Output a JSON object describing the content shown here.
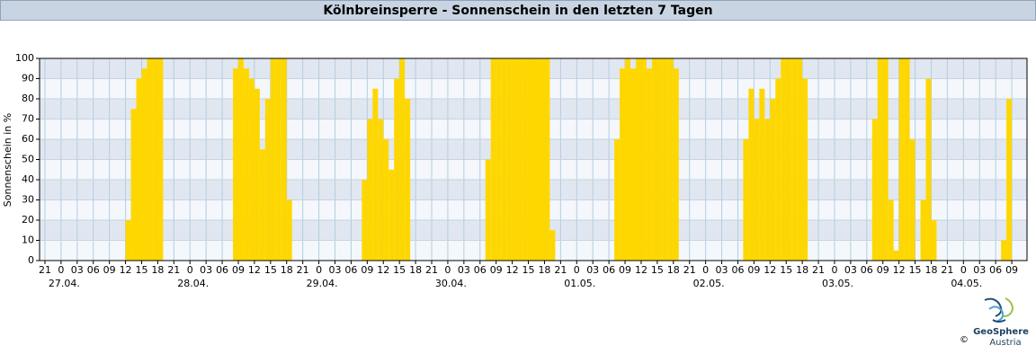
{
  "chart_data": {
    "type": "bar",
    "title": "Kölnbreinsperre - Sonnenschein in den letzten 7 Tagen",
    "y_label": "Sonnenschein in %",
    "color": "#ffd700",
    "grid": true,
    "x": [
      "27.04. 12:00",
      "27.04. 13:00",
      "27.04. 14:00",
      "27.04. 15:00",
      "27.04. 16:00",
      "27.04. 17:00",
      "27.04. 18:00",
      "28.04. 08:00",
      "28.04. 09:00",
      "28.04. 10:00",
      "28.04. 11:00",
      "28.04. 12:00",
      "28.04. 13:00",
      "28.04. 14:00",
      "28.04. 15:00",
      "28.04. 16:00",
      "28.04. 17:00",
      "28.04. 18:00",
      "29.04. 08:00",
      "29.04. 09:00",
      "29.04. 10:00",
      "29.04. 11:00",
      "29.04. 12:00",
      "29.04. 13:00",
      "29.04. 14:00",
      "29.04. 15:00",
      "29.04. 16:00",
      "30.04. 07:00",
      "30.04. 08:00",
      "30.04. 09:00",
      "30.04. 10:00",
      "30.04. 11:00",
      "30.04. 12:00",
      "30.04. 13:00",
      "30.04. 14:00",
      "30.04. 15:00",
      "30.04. 16:00",
      "30.04. 17:00",
      "30.04. 18:00",
      "30.04. 19:00",
      "01.05. 07:00",
      "01.05. 08:00",
      "01.05. 09:00",
      "01.05. 10:00",
      "01.05. 11:00",
      "01.05. 12:00",
      "01.05. 13:00",
      "01.05. 14:00",
      "01.05. 15:00",
      "01.05. 16:00",
      "01.05. 17:00",
      "01.05. 18:00",
      "02.05. 07:00",
      "02.05. 08:00",
      "02.05. 09:00",
      "02.05. 10:00",
      "02.05. 11:00",
      "02.05. 12:00",
      "02.05. 13:00",
      "02.05. 14:00",
      "02.05. 15:00",
      "02.05. 16:00",
      "02.05. 17:00",
      "02.05. 18:00",
      "03.05. 07:00",
      "03.05. 08:00",
      "03.05. 09:00",
      "03.05. 10:00",
      "03.05. 11:00",
      "03.05. 12:00",
      "03.05. 13:00",
      "03.05. 14:00",
      "03.05. 16:00",
      "03.05. 17:00",
      "03.05. 18:00",
      "04.05. 07:00",
      "04.05. 08:00"
    ],
    "values": [
      20,
      75,
      90,
      95,
      100,
      100,
      100,
      95,
      100,
      95,
      90,
      85,
      55,
      80,
      100,
      100,
      100,
      30,
      40,
      70,
      85,
      70,
      60,
      45,
      90,
      100,
      80,
      50,
      100,
      100,
      100,
      100,
      100,
      100,
      100,
      100,
      100,
      100,
      100,
      15,
      60,
      95,
      100,
      95,
      100,
      100,
      95,
      100,
      100,
      100,
      100,
      95,
      60,
      85,
      70,
      85,
      70,
      80,
      90,
      100,
      100,
      100,
      100,
      90,
      70,
      100,
      100,
      30,
      5,
      100,
      100,
      60,
      30,
      90,
      20,
      10,
      80
    ],
    "xlim": [
      "26.04. 20:00",
      "04.05. 11:50"
    ],
    "xticks": [
      {
        "value": "26.04. 21:00",
        "label": "21"
      },
      {
        "value": "27.04. 00:00",
        "label": "0"
      },
      {
        "value": "27.04. 03:00",
        "label": "03"
      },
      {
        "value": "27.04. 06:00",
        "label": "06"
      },
      {
        "value": "27.04. 09:00",
        "label": "09"
      },
      {
        "value": "27.04. 12:00",
        "label": "12"
      },
      {
        "value": "27.04. 15:00",
        "label": "15"
      },
      {
        "value": "27.04. 18:00",
        "label": "18"
      },
      {
        "value": "27.04. 21:00",
        "label": "21"
      },
      {
        "value": "28.04. 00:00",
        "label": "0"
      },
      {
        "value": "28.04. 03:00",
        "label": "03"
      },
      {
        "value": "28.04. 06:00",
        "label": "06"
      },
      {
        "value": "28.04. 09:00",
        "label": "09"
      },
      {
        "value": "28.04. 12:00",
        "label": "12"
      },
      {
        "value": "28.04. 15:00",
        "label": "15"
      },
      {
        "value": "28.04. 18:00",
        "label": "18"
      },
      {
        "value": "28.04. 21:00",
        "label": "21"
      },
      {
        "value": "29.04. 00:00",
        "label": "0"
      },
      {
        "value": "29.04. 03:00",
        "label": "03"
      },
      {
        "value": "29.04. 06:00",
        "label": "06"
      },
      {
        "value": "29.04. 09:00",
        "label": "09"
      },
      {
        "value": "29.04. 12:00",
        "label": "12"
      },
      {
        "value": "29.04. 15:00",
        "label": "15"
      },
      {
        "value": "29.04. 18:00",
        "label": "18"
      },
      {
        "value": "29.04. 21:00",
        "label": "21"
      },
      {
        "value": "30.04. 00:00",
        "label": "0"
      },
      {
        "value": "30.04. 03:00",
        "label": "03"
      },
      {
        "value": "30.04. 06:00",
        "label": "06"
      },
      {
        "value": "30.04. 09:00",
        "label": "09"
      },
      {
        "value": "30.04. 12:00",
        "label": "12"
      },
      {
        "value": "30.04. 15:00",
        "label": "15"
      },
      {
        "value": "30.04. 18:00",
        "label": "18"
      },
      {
        "value": "30.04. 21:00",
        "label": "21"
      },
      {
        "value": "01.05. 00:00",
        "label": "0"
      },
      {
        "value": "01.05. 03:00",
        "label": "03"
      },
      {
        "value": "01.05. 06:00",
        "label": "06"
      },
      {
        "value": "01.05. 09:00",
        "label": "09"
      },
      {
        "value": "01.05. 12:00",
        "label": "12"
      },
      {
        "value": "01.05. 15:00",
        "label": "15"
      },
      {
        "value": "01.05. 18:00",
        "label": "18"
      },
      {
        "value": "01.05. 21:00",
        "label": "21"
      },
      {
        "value": "02.05. 00:00",
        "label": "0"
      },
      {
        "value": "02.05. 03:00",
        "label": "03"
      },
      {
        "value": "02.05. 06:00",
        "label": "06"
      },
      {
        "value": "02.05. 09:00",
        "label": "09"
      },
      {
        "value": "02.05. 12:00",
        "label": "12"
      },
      {
        "value": "02.05. 15:00",
        "label": "15"
      },
      {
        "value": "02.05. 18:00",
        "label": "18"
      },
      {
        "value": "02.05. 21:00",
        "label": "21"
      },
      {
        "value": "03.05. 00:00",
        "label": "0"
      },
      {
        "value": "03.05. 03:00",
        "label": "03"
      },
      {
        "value": "03.05. 06:00",
        "label": "06"
      },
      {
        "value": "03.05. 09:00",
        "label": "09"
      },
      {
        "value": "03.05. 12:00",
        "label": "12"
      },
      {
        "value": "03.05. 15:00",
        "label": "15"
      },
      {
        "value": "03.05. 18:00",
        "label": "18"
      },
      {
        "value": "03.05. 21:00",
        "label": "21"
      },
      {
        "value": "04.05. 00:00",
        "label": "0"
      },
      {
        "value": "04.05. 03:00",
        "label": "03"
      },
      {
        "value": "04.05. 06:00",
        "label": "06"
      },
      {
        "value": "04.05. 09:00",
        "label": "09"
      }
    ],
    "date_labels": [
      {
        "value": "27.04. 00:00",
        "label": "27.04."
      },
      {
        "value": "28.04. 00:00",
        "label": "28.04."
      },
      {
        "value": "29.04. 00:00",
        "label": "29.04."
      },
      {
        "value": "30.04. 00:00",
        "label": "30.04."
      },
      {
        "value": "01.05. 00:00",
        "label": "01.05."
      },
      {
        "value": "02.05. 00:00",
        "label": "02.05."
      },
      {
        "value": "03.05. 00:00",
        "label": "03.05."
      },
      {
        "value": "04.05. 00:00",
        "label": "04.05."
      }
    ],
    "ylim": [
      0,
      100
    ],
    "yticks": [
      0,
      10,
      20,
      30,
      40,
      50,
      60,
      70,
      80,
      90,
      100
    ]
  },
  "logo": {
    "name": "GeoSphere",
    "sub": "Austria",
    "copyright": "©"
  }
}
